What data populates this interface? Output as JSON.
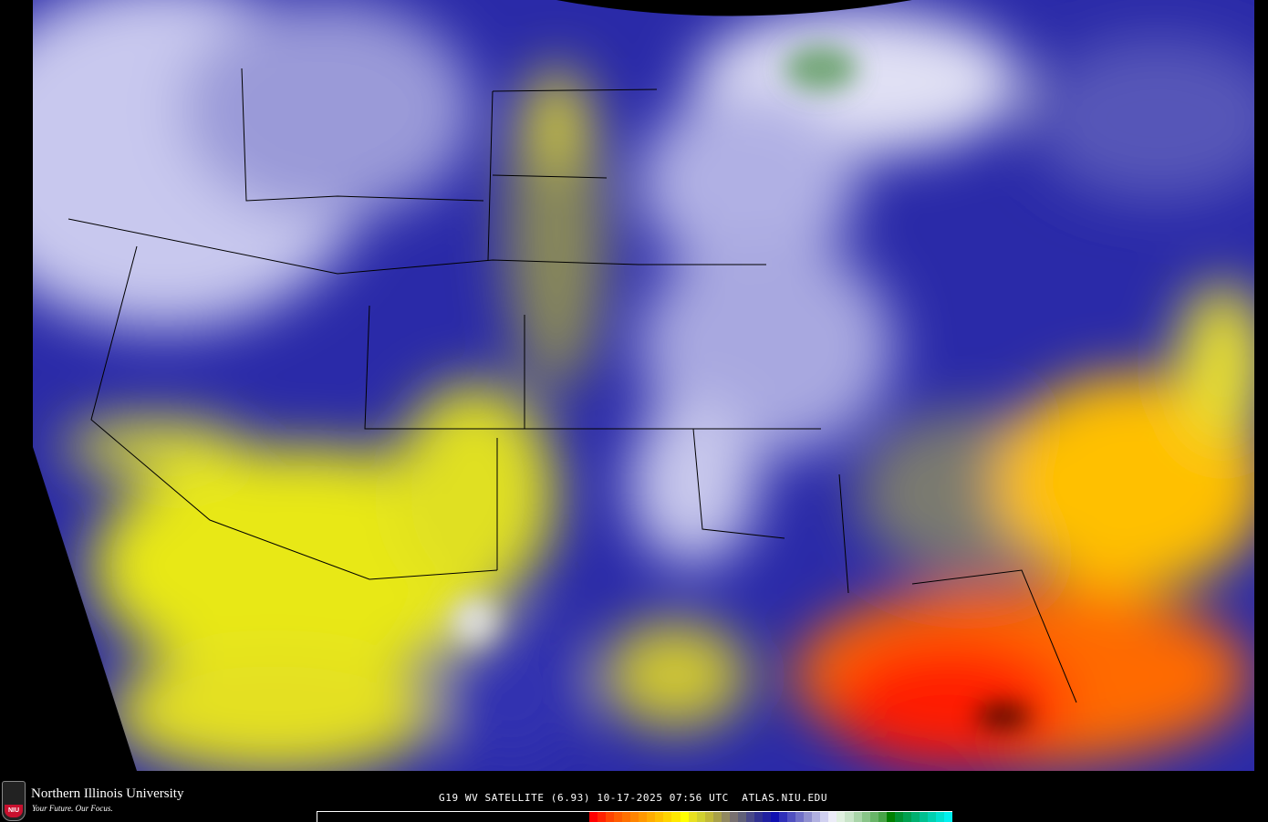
{
  "product": {
    "caption": "G19 WV SATELLITE (6.93) 10-17-2025 07:56 UTC  ATLAS.NIU.EDU"
  },
  "branding": {
    "university": "Northern Illinois University",
    "tagline": "Your Future. Our Focus.",
    "logo_text": "NIU"
  },
  "colorbar": {
    "colors": [
      "#ff0000",
      "#ff2200",
      "#ff4400",
      "#ff5c00",
      "#ff7000",
      "#ff8400",
      "#ff9800",
      "#ffac00",
      "#ffc000",
      "#ffd400",
      "#ffe800",
      "#ffff00",
      "#e8e020",
      "#d0d030",
      "#c0b838",
      "#a8a048",
      "#908860",
      "#787070",
      "#606078",
      "#484888",
      "#303090",
      "#2020a0",
      "#1010b0",
      "#3030b8",
      "#5050c0",
      "#7070c8",
      "#9090d0",
      "#b0b0e0",
      "#d0d0f0",
      "#ececf8",
      "#e0f0e0",
      "#c8e4c8",
      "#a8d4a8",
      "#88c488",
      "#68b468",
      "#48a448",
      "#008000",
      "#009030",
      "#00a050",
      "#00b070",
      "#00c090",
      "#00d0b0",
      "#00e0d0",
      "#00f0f0"
    ]
  },
  "map_colors": {
    "background": "#000000",
    "dry_red": "#ff1a00",
    "dry_orange": "#ff8c00",
    "dry_yellow": "#ffff00",
    "mid_olive": "#8a8a50",
    "moist_blue": "#1a1aa8",
    "moist_lavender": "#9090d8",
    "cold_white": "#e8e8f8",
    "cold_green": "#5a9a5a"
  }
}
